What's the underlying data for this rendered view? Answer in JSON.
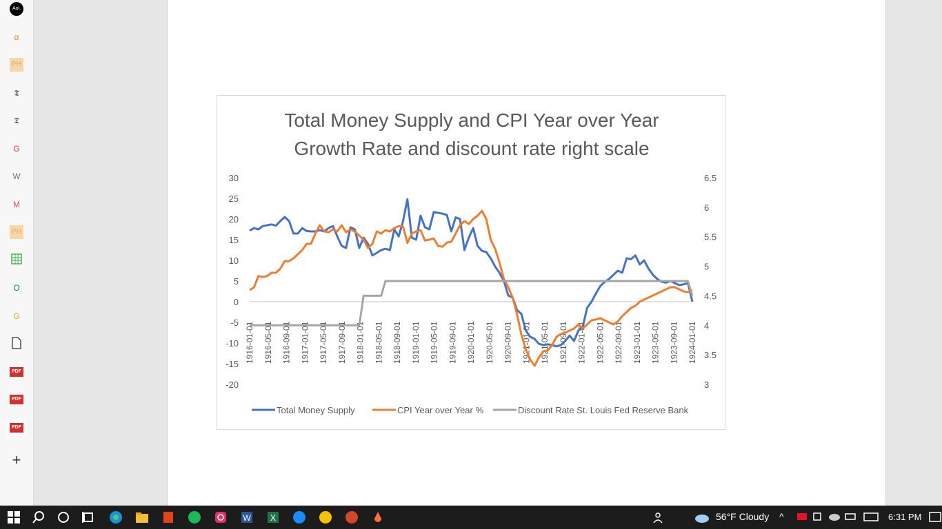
{
  "sidebar": {
    "icons": [
      {
        "name": "aol-icon",
        "text": "Aol."
      },
      {
        "name": "alpha-icon",
        "text": "α"
      },
      {
        "name": "ph-icon",
        "text": "PH"
      },
      {
        "name": "nyt-icon",
        "text": "𝕿"
      },
      {
        "name": "nyt-icon-2",
        "text": "𝕿"
      },
      {
        "name": "google-icon",
        "text": "G"
      },
      {
        "name": "wikipedia-icon",
        "text": "W"
      },
      {
        "name": "m-icon",
        "text": "M"
      },
      {
        "name": "ph-icon-2",
        "text": "PH"
      },
      {
        "name": "grid-icon",
        "text": ""
      },
      {
        "name": "outlook-icon",
        "text": "O"
      },
      {
        "name": "g-icon",
        "text": "G"
      },
      {
        "name": "document-icon",
        "text": ""
      },
      {
        "name": "pdf-icon",
        "text": "PDF"
      },
      {
        "name": "pdf-icon-2",
        "text": "PDF"
      },
      {
        "name": "pdf-icon-3",
        "text": "PDF"
      },
      {
        "name": "add-icon",
        "text": "+"
      }
    ]
  },
  "taskbar": {
    "weather": "56°F  Cloudy",
    "time": "6:31 PM"
  },
  "chart_data": {
    "type": "line",
    "title_line1": "Total Money Supply and CPI Year over Year",
    "title_line2": "Growth Rate and discount rate right scale",
    "x_ticks": [
      "1916-01-01",
      "1916-05-01",
      "1916-09-01",
      "1917-01-01",
      "1917-05-01",
      "1917-09-01",
      "1918-01-01",
      "1918-05-01",
      "1918-09-01",
      "1919-01-01",
      "1919-05-01",
      "1919-09-01",
      "1920-01-01",
      "1920-05-01",
      "1920-09-01",
      "1921-01-01",
      "1921-05-01",
      "1921-09-01",
      "1922-01-01",
      "1922-05-01",
      "1922-09-01",
      "1923-01-01",
      "1923-05-01",
      "1923-09-01",
      "1924-01-01"
    ],
    "y_left": {
      "min": -20,
      "max": 30,
      "ticks": [
        "30",
        "25",
        "20",
        "15",
        "10",
        "5",
        "0",
        "-5",
        "-10",
        "-15",
        "-20"
      ]
    },
    "y_right": {
      "min": 3,
      "max": 6.5,
      "ticks": [
        "6.5",
        "6",
        "5.5",
        "5",
        "4.5",
        "4",
        "3.5",
        "3"
      ]
    },
    "colors": {
      "money": "#4472c4",
      "cpi": "#ed7d31",
      "discount": "#a5a5a5"
    },
    "series": [
      {
        "name": "Total Money Supply",
        "axis": "left",
        "values": [
          17.2,
          17.8,
          17.5,
          18.3,
          18.5,
          18.7,
          18.4,
          19.5,
          20.5,
          19.5,
          16.5,
          16.5,
          17.8,
          17.1,
          17.0,
          17.0,
          17.3,
          17.0,
          17.8,
          18.3,
          15.8,
          13.5,
          13.0,
          18.0,
          17.5,
          13.0,
          15.5,
          14.0,
          11.2,
          11.8,
          12.5,
          12.8,
          12.5,
          17.5,
          15.8,
          19.5,
          24.8,
          15.5,
          15.0,
          20.8,
          18.0,
          17.5,
          21.7,
          21.5,
          21.3,
          21.0,
          17.0,
          20.4,
          20.0,
          12.5,
          15.5,
          17.8,
          13.5,
          12.3,
          12.0,
          10.5,
          8.5,
          7.0,
          5.0,
          1.5,
          1.0,
          -2.0,
          -3.0,
          -7.0,
          -8.5,
          -9.0,
          -10.2,
          -10.5,
          -10.3,
          -10.5,
          -10.8,
          -10.5,
          -9.5,
          -8.2,
          -9.5,
          -7.0,
          -6.0,
          -1.5,
          0.0,
          2.0,
          3.8,
          4.8,
          5.5,
          6.5,
          7.5,
          7.0,
          10.5,
          10.3,
          11.2,
          9.0,
          10.0,
          8.0,
          6.5,
          5.5,
          4.8,
          4.6,
          5.0,
          4.5,
          4.0,
          4.2,
          4.5,
          0.0
        ]
      },
      {
        "name": "CPI Year over Year %",
        "axis": "left",
        "values": [
          2.8,
          3.5,
          6.2,
          6.0,
          6.2,
          7.0,
          7.0,
          8.0,
          9.8,
          9.8,
          10.5,
          11.5,
          12.5,
          14.0,
          14.0,
          16.5,
          18.5,
          17.0,
          16.8,
          17.5,
          17.0,
          18.5,
          16.8,
          17.5,
          17.0,
          16.0,
          15.0,
          13.0,
          14.0,
          17.0,
          16.5,
          17.3,
          17.0,
          17.8,
          18.3,
          18.2,
          14.2,
          16.5,
          17.0,
          17.3,
          14.8,
          15.0,
          15.3,
          13.5,
          13.3,
          14.3,
          14.5,
          16.5,
          18.5,
          19.5,
          18.8,
          20.0,
          20.8,
          22.0,
          20.0,
          15.0,
          12.8,
          9.5,
          5.5,
          3.5,
          1.0,
          -3.0,
          -8.0,
          -11.5,
          -14.0,
          -15.5,
          -13.5,
          -12.0,
          -11.8,
          -10.5,
          -8.5,
          -7.8,
          -7.5,
          -7.0,
          -6.5,
          -5.5,
          -6.5,
          -5.5,
          -4.5,
          -4.3,
          -4.0,
          -4.5,
          -5.0,
          -5.5,
          -4.8,
          -3.5,
          -2.5,
          -1.5,
          -1.0,
          0.0,
          0.5,
          1.0,
          1.5,
          2.0,
          2.5,
          3.0,
          3.5,
          3.5,
          3.0,
          2.5,
          2.3,
          2.8
        ]
      },
      {
        "name": "Discount Rate St. Louis Fed Reserve Bank",
        "axis": "right",
        "values": [
          4.0,
          4.0,
          4.0,
          4.0,
          4.0,
          4.0,
          4.0,
          4.0,
          4.0,
          4.0,
          4.0,
          4.0,
          4.0,
          4.0,
          4.0,
          4.0,
          4.0,
          4.0,
          4.0,
          4.0,
          4.0,
          4.0,
          4.0,
          4.0,
          4.0,
          4.0,
          4.5,
          4.5,
          4.5,
          4.5,
          4.5,
          4.75,
          4.75,
          4.75,
          4.75,
          4.75,
          4.75,
          4.75,
          4.75,
          4.75,
          4.75,
          4.75,
          4.75,
          4.75,
          4.75,
          4.75,
          4.75,
          4.75,
          4.75,
          4.75,
          4.75,
          4.75,
          4.75,
          4.75,
          4.75,
          4.75,
          4.75,
          4.75,
          4.75,
          4.75,
          4.75,
          4.75,
          4.75,
          4.75,
          4.75,
          4.75,
          4.75,
          4.75,
          4.75,
          4.75,
          4.75,
          4.75,
          4.75,
          4.75,
          4.75,
          4.75,
          4.75,
          4.75,
          4.75,
          4.75,
          4.75,
          4.75,
          4.75,
          4.75,
          4.75,
          4.75,
          4.75,
          4.75,
          4.75,
          4.75,
          4.75,
          4.75,
          4.75,
          4.75,
          4.75,
          4.75,
          4.75,
          4.75,
          4.75,
          4.75,
          4.75,
          4.5
        ]
      }
    ],
    "legend_position": "bottom"
  }
}
